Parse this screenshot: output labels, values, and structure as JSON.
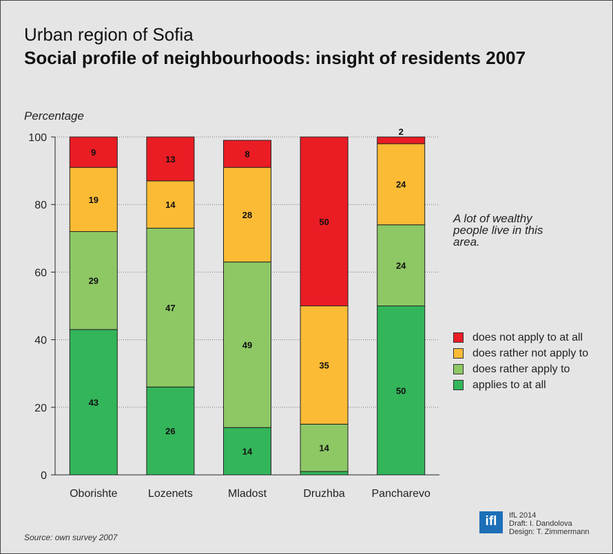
{
  "header": {
    "title_line1": "Urban region of Sofia",
    "title_line2": "Social profile of neighbourhoods: insight of residents 2007"
  },
  "annotation": "A lot of wealthy people live in this area.",
  "footer": {
    "source": "Source: own survey 2007",
    "logo_text": "ifl",
    "credits": [
      "IfL 2014",
      "Draft: I. Dandolova",
      "Design: T. Zimmermann"
    ]
  },
  "chart_data": {
    "type": "bar",
    "stacked": true,
    "title": "Social profile of neighbourhoods: insight of residents 2007",
    "ylabel": "Percentage",
    "xlabel": "",
    "ylim": [
      0,
      100
    ],
    "yticks": [
      0,
      20,
      40,
      60,
      80,
      100
    ],
    "grid": true,
    "legend_position": "right",
    "categories": [
      "Oborishte",
      "Lozenets",
      "Mladost",
      "Druzhba",
      "Pancharevo"
    ],
    "series": [
      {
        "name": "applies to at all",
        "color": "#33b55a",
        "values": [
          43,
          26,
          14,
          1,
          50
        ]
      },
      {
        "name": "does rather apply to",
        "color": "#8dc865",
        "values": [
          29,
          47,
          49,
          14,
          24
        ]
      },
      {
        "name": "does rather not apply to",
        "color": "#fbbb35",
        "values": [
          19,
          14,
          28,
          35,
          24
        ]
      },
      {
        "name": "does not apply to at all",
        "color": "#ea1c24",
        "values": [
          9,
          13,
          8,
          50,
          2
        ]
      }
    ]
  }
}
